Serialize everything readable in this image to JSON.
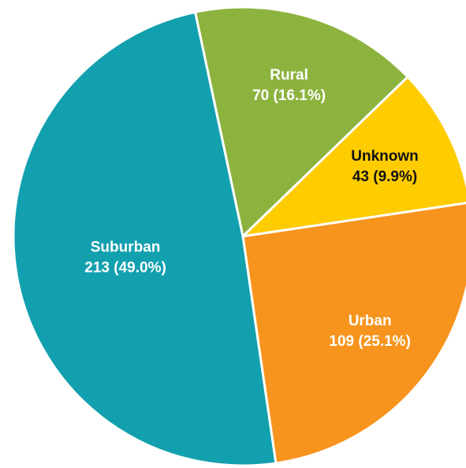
{
  "chart_data": {
    "type": "pie",
    "categories": [
      "Rural",
      "Unknown",
      "Urban",
      "Suburban"
    ],
    "values": [
      70,
      43,
      109,
      213
    ],
    "value_labels": [
      "70 (16.1%)",
      "43 (9.9%)",
      "109 (25.1%)",
      "213 (49.0%)"
    ],
    "colors": [
      "#8db33f",
      "#ffcc00",
      "#f7941d",
      "#12a0ae"
    ]
  }
}
